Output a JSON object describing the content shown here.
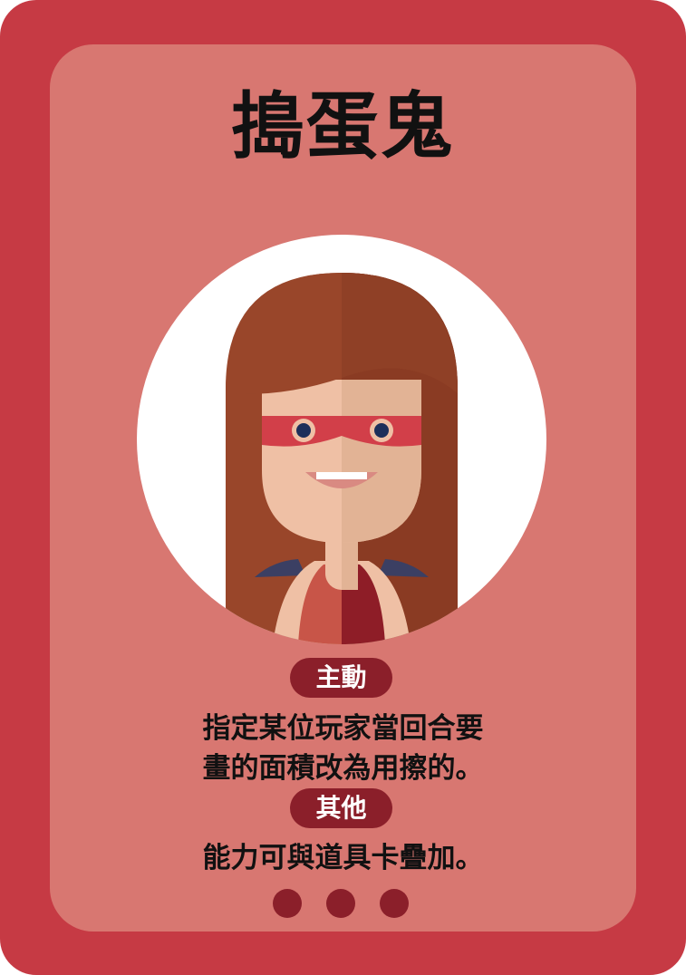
{
  "card": {
    "title": "搗蛋鬼",
    "active_label": "主動",
    "active_lines": [
      "指定某位玩家當回合要",
      "畫的面積改為用擦的。"
    ],
    "other_label": "其他",
    "other_lines": [
      "能力可與道具卡疊加。"
    ],
    "page_dots": 3,
    "colors": {
      "border": "#c63a44",
      "panel": "#d87771",
      "pill": "#8b1f2a",
      "text": "#111111"
    },
    "portrait_icon": "masked-girl-avatar-icon"
  }
}
